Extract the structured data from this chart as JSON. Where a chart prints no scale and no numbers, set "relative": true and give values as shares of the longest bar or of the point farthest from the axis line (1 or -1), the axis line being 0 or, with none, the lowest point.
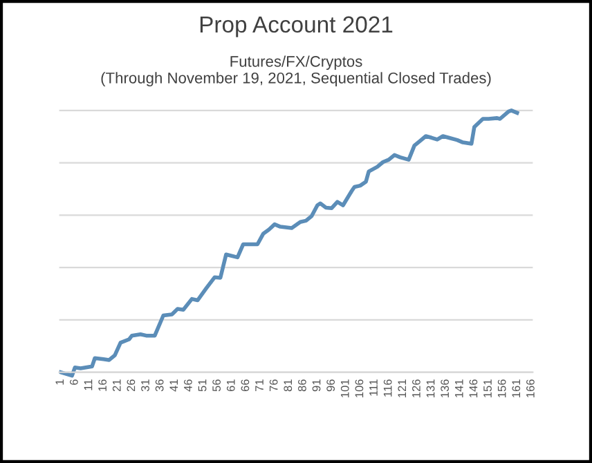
{
  "chart_data": {
    "type": "line",
    "title": "Prop Account 2021",
    "subtitle": "Futures/FX/Cryptos\n(Through November 19, 2021, Sequential Closed Trades)",
    "relative": true,
    "color": "#5b8db8",
    "grid": "y",
    "marker": "none",
    "line_style": "solid",
    "x": [
      1,
      5,
      6,
      8,
      12,
      13,
      16,
      18,
      20,
      22,
      25,
      26,
      29,
      31,
      34,
      37,
      40,
      42,
      44,
      47,
      49,
      52,
      55,
      57,
      59,
      63,
      65,
      70,
      72,
      74,
      76,
      78,
      82,
      85,
      87,
      89,
      91,
      92,
      94,
      96,
      98,
      100,
      103,
      104,
      106,
      108,
      109,
      112,
      114,
      116,
      118,
      120,
      123,
      125,
      127,
      129,
      131,
      133,
      135,
      137,
      140,
      142,
      145,
      146,
      149,
      151,
      154,
      155,
      158,
      159,
      161
    ],
    "values": [
      0,
      -0.013,
      0.018,
      0.015,
      0.022,
      0.054,
      0.05,
      0.047,
      0.065,
      0.113,
      0.126,
      0.14,
      0.145,
      0.14,
      0.14,
      0.217,
      0.221,
      0.242,
      0.239,
      0.28,
      0.275,
      0.32,
      0.363,
      0.361,
      0.45,
      0.439,
      0.489,
      0.489,
      0.529,
      0.545,
      0.565,
      0.556,
      0.551,
      0.574,
      0.579,
      0.597,
      0.638,
      0.645,
      0.629,
      0.627,
      0.651,
      0.638,
      0.692,
      0.708,
      0.713,
      0.728,
      0.767,
      0.785,
      0.803,
      0.812,
      0.83,
      0.821,
      0.812,
      0.866,
      0.884,
      0.902,
      0.896,
      0.889,
      0.902,
      0.896,
      0.887,
      0.878,
      0.873,
      0.937,
      0.968,
      0.968,
      0.971,
      0.968,
      0.996,
      1,
      0.991
    ],
    "xlim": [
      0.5,
      166.5
    ],
    "xticks": [
      1,
      6,
      11,
      16,
      21,
      26,
      31,
      36,
      41,
      46,
      51,
      56,
      61,
      66,
      71,
      76,
      81,
      86,
      91,
      96,
      101,
      106,
      111,
      116,
      121,
      126,
      131,
      136,
      141,
      146,
      151,
      156,
      161,
      166
    ]
  }
}
